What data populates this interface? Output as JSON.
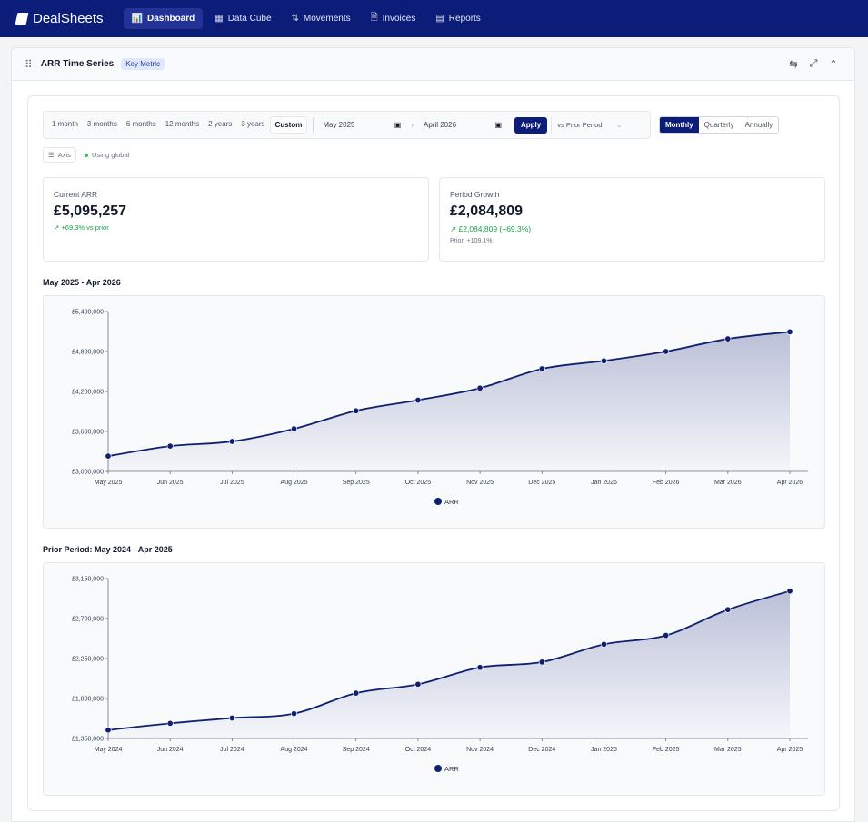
{
  "app": {
    "logo": "DealSheets"
  },
  "nav": [
    {
      "label": "Dashboard",
      "icon": "bar-chart-icon",
      "glyph": "📊",
      "active": true
    },
    {
      "label": "Data Cube",
      "icon": "grid-icon",
      "glyph": "▦",
      "active": false
    },
    {
      "label": "Movements",
      "icon": "arrows-updown-icon",
      "glyph": "⇅",
      "active": false
    },
    {
      "label": "Invoices",
      "icon": "document-icon",
      "glyph": "🗎",
      "active": false
    },
    {
      "label": "Reports",
      "icon": "report-icon",
      "glyph": "▤",
      "active": false
    }
  ],
  "widget": {
    "title": "ARR Time Series",
    "badge": "Key Metric"
  },
  "controls": {
    "ranges": [
      "1 month",
      "3 months",
      "6 months",
      "12 months",
      "2 years",
      "3 years",
      "Custom"
    ],
    "active_range": "Custom",
    "start_date": "May 2025",
    "end_date": "April 2026",
    "apply": "Apply",
    "compare": "vs Prior Period",
    "granularity": [
      "Monthly",
      "Quarterly",
      "Annually"
    ],
    "active_granularity": "Monthly",
    "axis_label": "Axis",
    "axis_status": "Using global"
  },
  "kpis": {
    "current": {
      "label": "Current ARR",
      "value": "£5,095,257",
      "delta": "+69.3% vs prior"
    },
    "growth": {
      "label": "Period Growth",
      "value": "£2,084,809",
      "delta": "£2,084,809 (+69.3%)",
      "prior": "Prior: +109.1%"
    }
  },
  "colors": {
    "accent": "#0b1d78",
    "line": "#0f2070",
    "positive": "#16a34a"
  },
  "chart_data": [
    {
      "type": "area",
      "title": "May 2025 - Apr 2026",
      "categories": [
        "May 2025",
        "Jun 2025",
        "Jul 2025",
        "Aug 2025",
        "Sep 2025",
        "Oct 2025",
        "Nov 2025",
        "Dec 2025",
        "Jan 2026",
        "Feb 2026",
        "Mar 2026",
        "Apr 2026"
      ],
      "series": [
        {
          "name": "ARR",
          "values": [
            3230000,
            3380000,
            3450000,
            3640000,
            3910000,
            4070000,
            4250000,
            4540000,
            4660000,
            4800000,
            4990000,
            5095257
          ]
        }
      ],
      "yticks": [
        "£3,000,000",
        "£3,600,000",
        "£4,200,000",
        "£4,800,000",
        "£5,400,000"
      ],
      "ylim": [
        3000000,
        5400000
      ],
      "legend": "bottom"
    },
    {
      "type": "area",
      "title": "Prior Period: May 2024 - Apr 2025",
      "categories": [
        "May 2024",
        "Jun 2024",
        "Jul 2024",
        "Aug 2024",
        "Sep 2024",
        "Oct 2024",
        "Nov 2024",
        "Dec 2024",
        "Jan 2025",
        "Feb 2025",
        "Mar 2025",
        "Apr 2025"
      ],
      "series": [
        {
          "name": "ARR",
          "values": [
            1445000,
            1520000,
            1580000,
            1630000,
            1860000,
            1960000,
            2150000,
            2210000,
            2410000,
            2510000,
            2800000,
            3010000
          ]
        }
      ],
      "yticks": [
        "£1,350,000",
        "£1,800,000",
        "£2,250,000",
        "£2,700,000",
        "£3,150,000"
      ],
      "ylim": [
        1350000,
        3150000
      ],
      "legend": "bottom"
    }
  ]
}
